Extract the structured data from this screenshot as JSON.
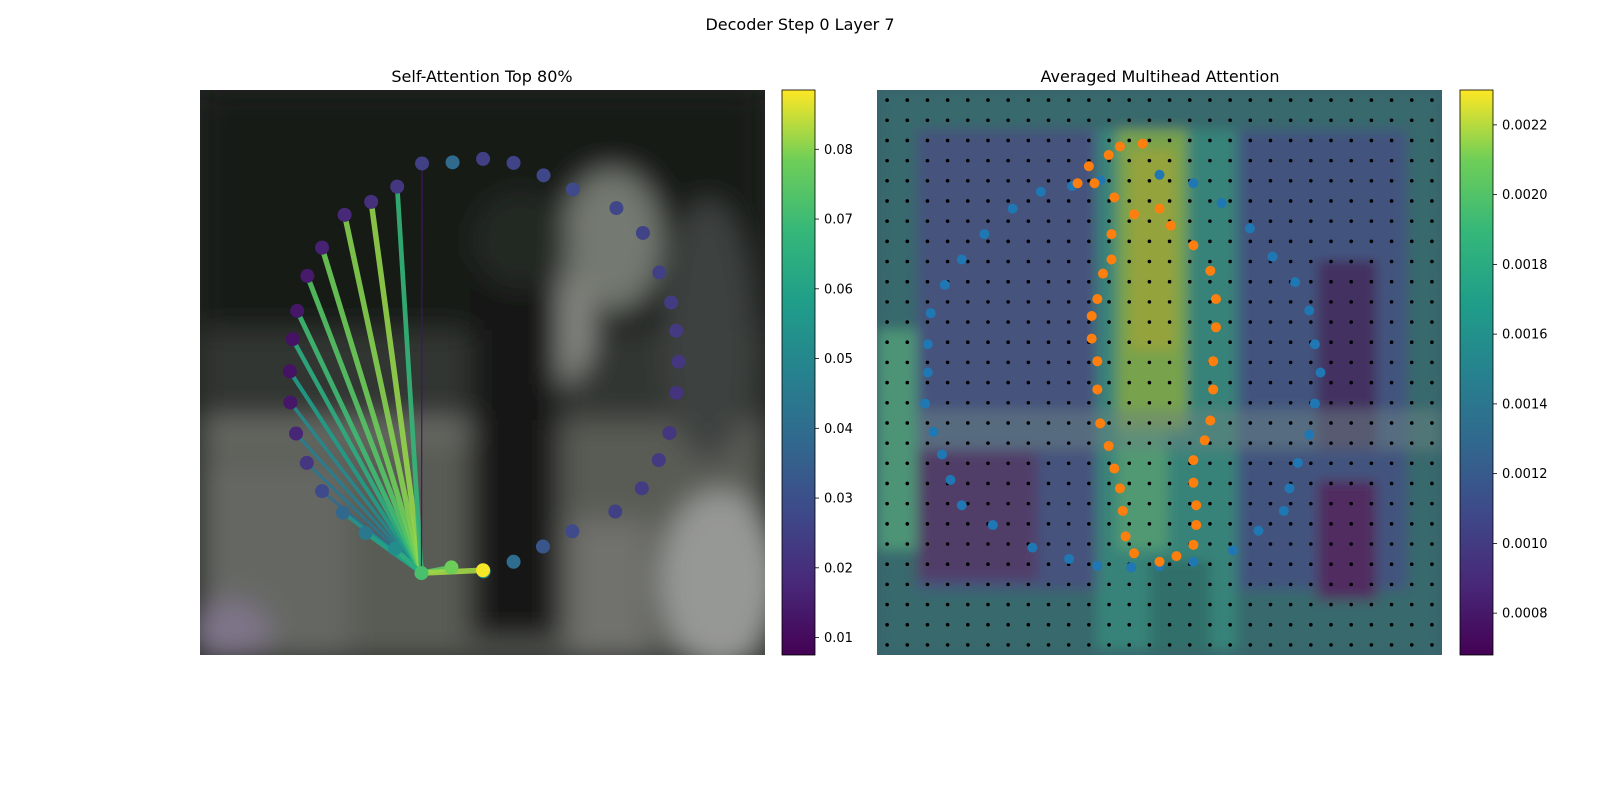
{
  "figure": {
    "title": "Decoder Step 0 Layer 7"
  },
  "chart_data": [
    {
      "type": "scatter",
      "title": "Self-Attention Top 80%",
      "axes_visible": false,
      "background": "blurred video frame",
      "colormap": "viridis",
      "colorbar": {
        "range": [
          0.0075,
          0.0885
        ],
        "ticks": [
          0.01,
          0.02,
          0.03,
          0.04,
          0.05,
          0.06,
          0.07,
          0.08
        ],
        "tick_labels": [
          "0.01",
          "0.02",
          "0.03",
          "0.04",
          "0.05",
          "0.06",
          "0.07",
          "0.08"
        ]
      },
      "query_point_index": 8,
      "points": [
        {
          "x": 0.502,
          "y": 0.852,
          "value": 0.05
        },
        {
          "x": 0.555,
          "y": 0.835,
          "value": 0.04
        },
        {
          "x": 0.607,
          "y": 0.808,
          "value": 0.032
        },
        {
          "x": 0.659,
          "y": 0.781,
          "value": 0.028
        },
        {
          "x": 0.735,
          "y": 0.746,
          "value": 0.025
        },
        {
          "x": 0.782,
          "y": 0.705,
          "value": 0.024
        },
        {
          "x": 0.812,
          "y": 0.655,
          "value": 0.023
        },
        {
          "x": 0.831,
          "y": 0.607,
          "value": 0.022
        },
        {
          "x": 0.392,
          "y": 0.855,
          "value": 0.072
        },
        {
          "x": 0.843,
          "y": 0.536,
          "value": 0.021
        },
        {
          "x": 0.847,
          "y": 0.481,
          "value": 0.022
        },
        {
          "x": 0.843,
          "y": 0.426,
          "value": 0.023
        },
        {
          "x": 0.834,
          "y": 0.376,
          "value": 0.024
        },
        {
          "x": 0.813,
          "y": 0.323,
          "value": 0.025
        },
        {
          "x": 0.784,
          "y": 0.253,
          "value": 0.026
        },
        {
          "x": 0.737,
          "y": 0.209,
          "value": 0.027
        },
        {
          "x": 0.66,
          "y": 0.176,
          "value": 0.028
        },
        {
          "x": 0.608,
          "y": 0.151,
          "value": 0.027
        },
        {
          "x": 0.555,
          "y": 0.129,
          "value": 0.026
        },
        {
          "x": 0.501,
          "y": 0.122,
          "value": 0.025
        },
        {
          "x": 0.447,
          "y": 0.128,
          "value": 0.039
        },
        {
          "x": 0.393,
          "y": 0.13,
          "value": 0.025
        },
        {
          "x": 0.349,
          "y": 0.171,
          "value": 0.022
        },
        {
          "x": 0.303,
          "y": 0.198,
          "value": 0.02
        },
        {
          "x": 0.256,
          "y": 0.221,
          "value": 0.018
        },
        {
          "x": 0.216,
          "y": 0.279,
          "value": 0.016
        },
        {
          "x": 0.19,
          "y": 0.329,
          "value": 0.014
        },
        {
          "x": 0.172,
          "y": 0.391,
          "value": 0.013
        },
        {
          "x": 0.164,
          "y": 0.441,
          "value": 0.012
        },
        {
          "x": 0.159,
          "y": 0.498,
          "value": 0.012
        },
        {
          "x": 0.16,
          "y": 0.553,
          "value": 0.013
        },
        {
          "x": 0.17,
          "y": 0.608,
          "value": 0.017
        },
        {
          "x": 0.189,
          "y": 0.66,
          "value": 0.022
        },
        {
          "x": 0.216,
          "y": 0.71,
          "value": 0.028
        },
        {
          "x": 0.253,
          "y": 0.748,
          "value": 0.038
        },
        {
          "x": 0.293,
          "y": 0.784,
          "value": 0.044
        },
        {
          "x": 0.345,
          "y": 0.812,
          "value": 0.052
        },
        {
          "x": 0.445,
          "y": 0.845,
          "value": 0.078
        },
        {
          "x": 0.501,
          "y": 0.85,
          "value": 0.088
        }
      ],
      "attention_links": [
        {
          "to": 33,
          "value": 0.04
        },
        {
          "to": 32,
          "value": 0.043
        },
        {
          "to": 31,
          "value": 0.046
        },
        {
          "to": 30,
          "value": 0.05
        },
        {
          "to": 29,
          "value": 0.058
        },
        {
          "to": 28,
          "value": 0.064
        },
        {
          "to": 27,
          "value": 0.07
        },
        {
          "to": 26,
          "value": 0.074
        },
        {
          "to": 25,
          "value": 0.078
        },
        {
          "to": 24,
          "value": 0.08
        },
        {
          "to": 23,
          "value": 0.081
        },
        {
          "to": 22,
          "value": 0.068
        },
        {
          "to": 21,
          "value": 0.012
        },
        {
          "to": 34,
          "value": 0.055
        },
        {
          "to": 35,
          "value": 0.06
        },
        {
          "to": 36,
          "value": 0.065
        },
        {
          "to": 37,
          "value": 0.076
        },
        {
          "to": 38,
          "value": 0.082
        }
      ]
    },
    {
      "type": "heatmap",
      "title": "Averaged Multihead Attention",
      "axes_visible": false,
      "colormap": "viridis",
      "colorbar": {
        "range": [
          0.00068,
          0.0023
        ],
        "ticks": [
          0.0008,
          0.001,
          0.0012,
          0.0014,
          0.0016,
          0.0018,
          0.002,
          0.0022
        ],
        "tick_labels": [
          "0.0008",
          "0.0010",
          "0.0012",
          "0.0014",
          "0.0016",
          "0.0018",
          "0.0020",
          "0.0022"
        ]
      },
      "grid": {
        "rows": 28,
        "cols": 28
      },
      "blue_points": [
        [
          0.5,
          0.15
        ],
        [
          0.56,
          0.165
        ],
        [
          0.61,
          0.2
        ],
        [
          0.66,
          0.245
        ],
        [
          0.7,
          0.295
        ],
        [
          0.74,
          0.34
        ],
        [
          0.765,
          0.39
        ],
        [
          0.775,
          0.45
        ],
        [
          0.785,
          0.5
        ],
        [
          0.775,
          0.555
        ],
        [
          0.765,
          0.61
        ],
        [
          0.745,
          0.66
        ],
        [
          0.73,
          0.705
        ],
        [
          0.72,
          0.745
        ],
        [
          0.675,
          0.78
        ],
        [
          0.63,
          0.815
        ],
        [
          0.56,
          0.835
        ],
        [
          0.5,
          0.843
        ],
        [
          0.45,
          0.845
        ],
        [
          0.39,
          0.842
        ],
        [
          0.34,
          0.83
        ],
        [
          0.275,
          0.81
        ],
        [
          0.205,
          0.77
        ],
        [
          0.15,
          0.735
        ],
        [
          0.13,
          0.69
        ],
        [
          0.115,
          0.645
        ],
        [
          0.1,
          0.605
        ],
        [
          0.085,
          0.555
        ],
        [
          0.09,
          0.5
        ],
        [
          0.09,
          0.45
        ],
        [
          0.095,
          0.395
        ],
        [
          0.12,
          0.345
        ],
        [
          0.15,
          0.3
        ],
        [
          0.19,
          0.255
        ],
        [
          0.24,
          0.21
        ],
        [
          0.29,
          0.18
        ],
        [
          0.345,
          0.17
        ],
        [
          0.395,
          0.16
        ]
      ],
      "orange_points": [
        [
          0.47,
          0.095
        ],
        [
          0.43,
          0.1
        ],
        [
          0.41,
          0.115
        ],
        [
          0.375,
          0.135
        ],
        [
          0.355,
          0.165
        ],
        [
          0.385,
          0.165
        ],
        [
          0.42,
          0.19
        ],
        [
          0.455,
          0.22
        ],
        [
          0.415,
          0.255
        ],
        [
          0.415,
          0.3
        ],
        [
          0.4,
          0.325
        ],
        [
          0.39,
          0.37
        ],
        [
          0.38,
          0.4
        ],
        [
          0.38,
          0.44
        ],
        [
          0.39,
          0.48
        ],
        [
          0.39,
          0.53
        ],
        [
          0.395,
          0.59
        ],
        [
          0.41,
          0.63
        ],
        [
          0.42,
          0.67
        ],
        [
          0.43,
          0.705
        ],
        [
          0.435,
          0.745
        ],
        [
          0.44,
          0.79
        ],
        [
          0.455,
          0.82
        ],
        [
          0.5,
          0.835
        ],
        [
          0.53,
          0.825
        ],
        [
          0.56,
          0.805
        ],
        [
          0.565,
          0.77
        ],
        [
          0.565,
          0.735
        ],
        [
          0.56,
          0.695
        ],
        [
          0.56,
          0.655
        ],
        [
          0.58,
          0.62
        ],
        [
          0.59,
          0.585
        ],
        [
          0.595,
          0.53
        ],
        [
          0.595,
          0.48
        ],
        [
          0.6,
          0.42
        ],
        [
          0.6,
          0.37
        ],
        [
          0.59,
          0.32
        ],
        [
          0.56,
          0.275
        ],
        [
          0.52,
          0.24
        ],
        [
          0.5,
          0.21
        ]
      ]
    }
  ]
}
